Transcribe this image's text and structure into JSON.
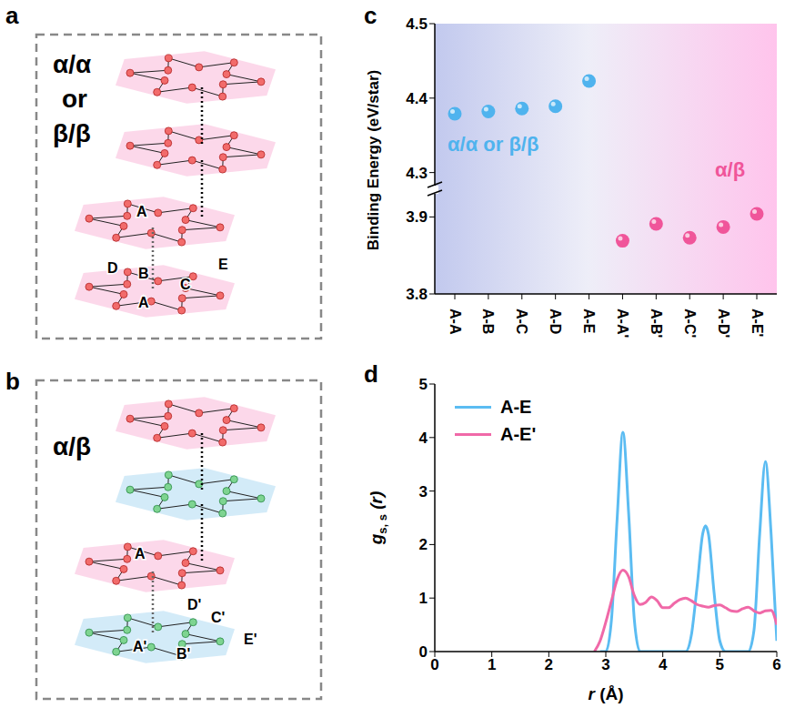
{
  "diagrams": [
    {
      "panel": "a",
      "title": [
        "α/α",
        "or",
        "β/β"
      ],
      "site_labels": [
        "A",
        "D",
        "B",
        "C",
        "E",
        "A"
      ]
    },
    {
      "panel": "b",
      "title": [
        "α/β"
      ],
      "site_labels": [
        "A",
        "D'",
        "C'",
        "A'",
        "B'",
        "E'"
      ]
    }
  ],
  "chart_data": [
    {
      "panel": "c",
      "type": "scatter",
      "ylabel": "Binding Energy (eV/star)",
      "categories": [
        "A-A",
        "A-B",
        "A-C",
        "A-D",
        "A-E",
        "A-A'",
        "A-B'",
        "A-C'",
        "A-D'",
        "A-E'"
      ],
      "series": [
        {
          "name": "α/α or β/β",
          "color": "#4fb3ee",
          "values": [
            4.379,
            4.382,
            4.386,
            4.389,
            4.423,
            null,
            null,
            null,
            null,
            null
          ]
        },
        {
          "name": "α/β",
          "color": "#f0559a",
          "values": [
            null,
            null,
            null,
            null,
            null,
            3.869,
            3.891,
            3.873,
            3.887,
            3.904
          ]
        }
      ],
      "ylim": [
        [
          3.8,
          3.93
        ],
        [
          4.28,
          4.5
        ]
      ],
      "yticks": [
        [
          3.8,
          3.9
        ],
        [
          4.3,
          4.4,
          4.5
        ]
      ]
    },
    {
      "panel": "d",
      "type": "line",
      "xlabel": [
        "r",
        "(Å)"
      ],
      "ylabel": [
        "g",
        "s, s",
        "(r)"
      ],
      "xlim": [
        0,
        6
      ],
      "xticks": [
        0,
        1,
        2,
        3,
        4,
        5,
        6
      ],
      "ylim": [
        0,
        5
      ],
      "yticks": [
        0,
        1,
        2,
        3,
        4,
        5
      ],
      "legend": "upper left",
      "series": [
        {
          "name": "A-E",
          "color": "#5bbcf2",
          "x": [
            2.9,
            3.0,
            3.1,
            3.2,
            3.3,
            3.4,
            3.5,
            3.6,
            4.4,
            4.5,
            4.6,
            4.7,
            4.75,
            4.8,
            4.9,
            5.0,
            5.1,
            5.5,
            5.6,
            5.7,
            5.8,
            5.9,
            6.0
          ],
          "values": [
            0,
            0,
            0.6,
            2.5,
            4.1,
            2.6,
            0.6,
            0,
            0,
            0.3,
            1.2,
            2.2,
            2.35,
            2.2,
            1.1,
            0.2,
            0,
            0,
            0.4,
            2.2,
            3.55,
            2.2,
            0.2
          ]
        },
        {
          "name": "A-E'",
          "color": "#f069a8",
          "x": [
            2.8,
            2.9,
            3.0,
            3.1,
            3.2,
            3.3,
            3.4,
            3.5,
            3.6,
            3.7,
            3.8,
            3.9,
            4.0,
            4.1,
            4.2,
            4.3,
            4.4,
            4.5,
            4.6,
            4.7,
            4.8,
            4.9,
            5.0,
            5.1,
            5.2,
            5.3,
            5.4,
            5.5,
            5.6,
            5.7,
            5.8,
            5.9,
            6.0
          ],
          "values": [
            0,
            0.2,
            0.55,
            0.95,
            1.35,
            1.52,
            1.4,
            1.05,
            0.88,
            0.92,
            1.02,
            0.95,
            0.82,
            0.82,
            0.9,
            0.97,
            1.0,
            0.95,
            0.88,
            0.85,
            0.83,
            0.86,
            0.87,
            0.82,
            0.76,
            0.75,
            0.8,
            0.83,
            0.76,
            0.72,
            0.76,
            0.77,
            0.5
          ]
        }
      ]
    }
  ]
}
